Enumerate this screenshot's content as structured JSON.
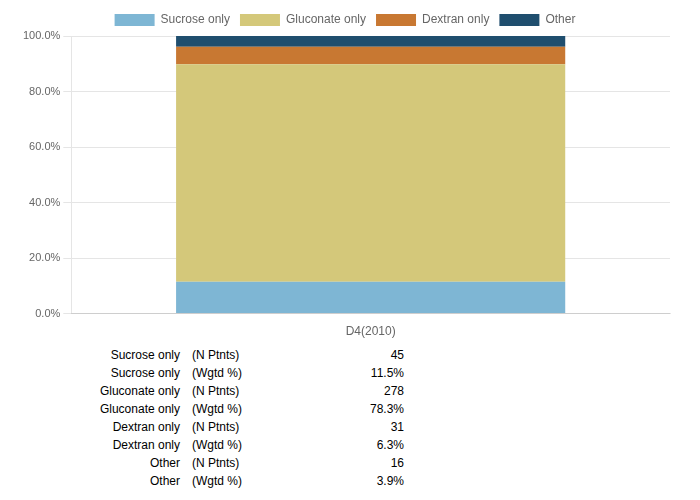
{
  "chart_data": {
    "type": "bar",
    "stacked": true,
    "categories": [
      "D4(2010)"
    ],
    "series": [
      {
        "name": "Sucrose only",
        "values": [
          11.5
        ],
        "color": "#7eb6d4"
      },
      {
        "name": "Gluconate only",
        "values": [
          78.3
        ],
        "color": "#d4c87a"
      },
      {
        "name": "Dextran only",
        "values": [
          6.3
        ],
        "color": "#c87832"
      },
      {
        "name": "Other",
        "values": [
          3.9
        ],
        "color": "#1f4e6e"
      }
    ],
    "ylim": [
      0,
      100
    ],
    "yticks": [
      {
        "value": 0,
        "label": "0.0%"
      },
      {
        "value": 20,
        "label": "20.0%"
      },
      {
        "value": 40,
        "label": "40.0%"
      },
      {
        "value": 60,
        "label": "60.0%"
      },
      {
        "value": 80,
        "label": "80.0%"
      },
      {
        "value": 100,
        "label": "100.0%"
      }
    ],
    "grid": true,
    "legend": "top",
    "table": [
      [
        "Sucrose only",
        "(N Ptnts)",
        "45"
      ],
      [
        "Sucrose only",
        "(Wgtd %)",
        "11.5%"
      ],
      [
        "Gluconate only",
        "(N Ptnts)",
        "278"
      ],
      [
        "Gluconate only",
        "(Wgtd %)",
        "78.3%"
      ],
      [
        "Dextran only",
        "(N Ptnts)",
        "31"
      ],
      [
        "Dextran only",
        "(Wgtd %)",
        "6.3%"
      ],
      [
        "Other",
        "(N Ptnts)",
        "16"
      ],
      [
        "Other",
        "(Wgtd %)",
        "3.9%"
      ]
    ]
  }
}
